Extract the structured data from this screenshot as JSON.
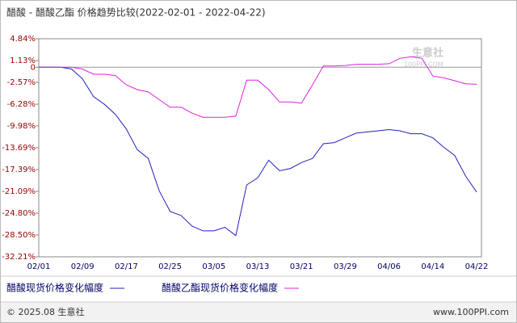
{
  "chart_data": {
    "type": "line",
    "title": "醋酸 - 醋酸乙酯 价格趋势比较(2022-02-01 - 2022-04-22)",
    "categories": [
      "02/01",
      null,
      null,
      null,
      "02/09",
      null,
      null,
      null,
      "02/17",
      null,
      null,
      null,
      "02/25",
      null,
      null,
      null,
      "03/05",
      null,
      null,
      null,
      "03/13",
      null,
      null,
      null,
      "03/21",
      null,
      null,
      null,
      "03/29",
      null,
      null,
      null,
      "04/06",
      null,
      null,
      null,
      "04/14",
      null,
      null,
      null,
      "04/22"
    ],
    "series": [
      {
        "name": "醋酸现货价格变化幅度",
        "color": "#2222bb",
        "values": [
          0,
          0,
          0,
          -0.3,
          -2,
          -5,
          -6.3,
          -8,
          -10.5,
          -14,
          -15.5,
          -21,
          -24.5,
          -25.2,
          -27,
          -27.8,
          -27.8,
          -27.2,
          -28.6,
          -20,
          -18.8,
          -15.8,
          -17.6,
          -17.2,
          -16.2,
          -15.5,
          -13,
          -12.8,
          -12,
          -11.2,
          -11,
          -10.8,
          -10.6,
          -10.8,
          -11.3,
          -11.3,
          -12,
          -13.6,
          -15,
          -18.5,
          -21.2
        ]
      },
      {
        "name": "醋酸乙酯现货价格变化幅度",
        "color": "#dd22dd",
        "values": [
          0,
          0,
          0,
          0,
          -0.3,
          -1.2,
          -1.2,
          -1.4,
          -3,
          -3.8,
          -4.2,
          -5.5,
          -6.8,
          -6.8,
          -7.8,
          -8.5,
          -8.5,
          -8.5,
          -8.3,
          -2.2,
          -2.2,
          -3.8,
          -5.9,
          -5.9,
          -6.1,
          -3,
          0.2,
          0.2,
          0.3,
          0.5,
          0.5,
          0.5,
          0.6,
          1.5,
          1.8,
          1.5,
          -1.5,
          -1.8,
          -2.3,
          -2.8,
          -2.9
        ]
      }
    ],
    "ylim": [
      -32.21,
      4.84
    ],
    "yticks": [
      {
        "value": 4.84,
        "label": "4.84%"
      },
      {
        "value": 1.13,
        "label": "1.13%"
      },
      0,
      {
        "value": -2.57,
        "label": "-2.57%"
      },
      {
        "value": -6.28,
        "label": "-6.28%"
      },
      {
        "value": -9.98,
        "label": "-9.98%"
      },
      {
        "value": -13.69,
        "label": "-13.69%"
      },
      {
        "value": -17.39,
        "label": "-17.39%"
      },
      {
        "value": -21.09,
        "label": "-21.09%"
      },
      {
        "value": -24.8,
        "label": "-24.80%"
      },
      {
        "value": -28.5,
        "label": "-28.50%"
      },
      {
        "value": -32.21,
        "label": "-32.21%"
      }
    ],
    "watermark": {
      "name": "生意社",
      "site": "100PPI.COM"
    },
    "footer": {
      "left": "© 2025.08 生意社",
      "right": "www.100PPI.com"
    }
  }
}
